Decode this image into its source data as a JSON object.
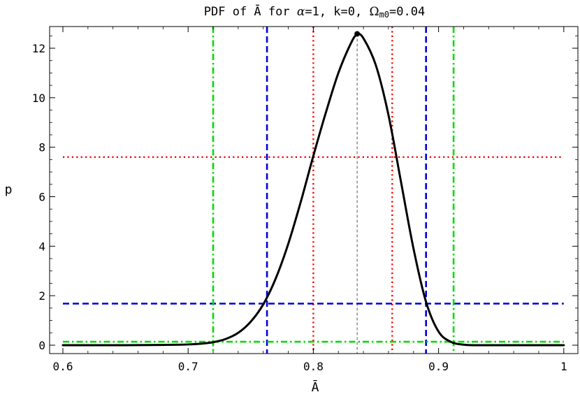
{
  "chart_data": {
    "type": "line",
    "title": "PDF of Ā for α=1, k=0, Ωm0=0.04",
    "title_parts": {
      "prefix": "PDF of Ā for ",
      "alpha": "α",
      "mid": "=1, k=0, ",
      "omega": "Ω",
      "omega_sub": "m0",
      "suffix": "=0.04"
    },
    "xlabel": "Ā",
    "ylabel": "p",
    "xlim": [
      0.6,
      1.0
    ],
    "ylim": [
      0,
      12.8
    ],
    "x_ticks": [
      0.6,
      0.7,
      0.8,
      0.9,
      1.0
    ],
    "x_tick_labels": [
      "0.6",
      "0.7",
      "0.8",
      "0.9",
      "1"
    ],
    "y_ticks": [
      0,
      2,
      4,
      6,
      8,
      10,
      12
    ],
    "y_tick_labels": [
      "0",
      "2",
      "4",
      "6",
      "8",
      "10",
      "12"
    ],
    "grid": false,
    "series": [
      {
        "color": "#000000",
        "style": "solid",
        "x": [
          0.6,
          0.65,
          0.68,
          0.7,
          0.71,
          0.72,
          0.73,
          0.74,
          0.75,
          0.76,
          0.77,
          0.78,
          0.79,
          0.8,
          0.81,
          0.82,
          0.83,
          0.835,
          0.84,
          0.85,
          0.86,
          0.87,
          0.88,
          0.89,
          0.9,
          0.91,
          0.92,
          0.93,
          0.95,
          1.0
        ],
        "y": [
          0,
          0,
          0.01,
          0.03,
          0.06,
          0.12,
          0.25,
          0.5,
          0.95,
          1.65,
          2.7,
          4.1,
          5.8,
          7.65,
          9.4,
          11.0,
          12.2,
          12.55,
          12.4,
          11.3,
          9.3,
          6.6,
          3.9,
          1.75,
          0.55,
          0.13,
          0.02,
          0,
          0,
          0
        ]
      }
    ],
    "peak": {
      "x": 0.835,
      "y": 12.58
    },
    "reference_lines": [
      {
        "kind": "vertical",
        "x": 0.835,
        "y_top": 12.58,
        "color": "#555555",
        "style": "dashed-thin"
      },
      {
        "kind": "horizontal",
        "y": 7.6,
        "color": "#ff0000",
        "style": "dotted"
      },
      {
        "kind": "vertical",
        "x": 0.8,
        "color": "#ff0000",
        "style": "dotted"
      },
      {
        "kind": "vertical",
        "x": 0.863,
        "color": "#ff0000",
        "style": "dotted"
      },
      {
        "kind": "horizontal",
        "y": 1.68,
        "color": "#0000dd",
        "style": "dashed"
      },
      {
        "kind": "vertical",
        "x": 0.763,
        "color": "#0000dd",
        "style": "dashed"
      },
      {
        "kind": "vertical",
        "x": 0.89,
        "color": "#0000dd",
        "style": "dashed"
      },
      {
        "kind": "horizontal",
        "y": 0.14,
        "color": "#00dd00",
        "style": "dashdot"
      },
      {
        "kind": "vertical",
        "x": 0.72,
        "color": "#00dd00",
        "style": "dashdot"
      },
      {
        "kind": "vertical",
        "x": 0.912,
        "color": "#00dd00",
        "style": "dashdot"
      }
    ]
  }
}
